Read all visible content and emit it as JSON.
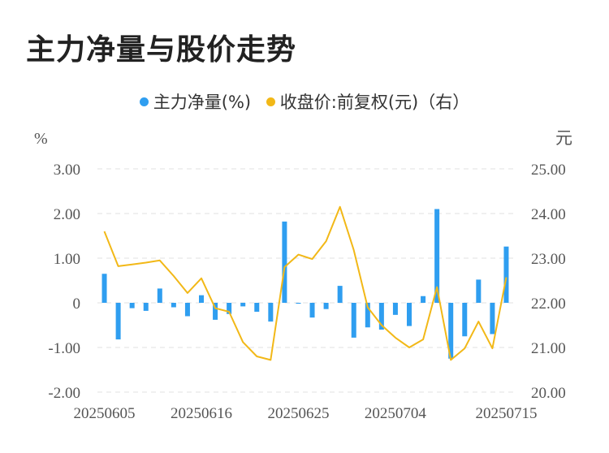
{
  "title": "主力净量与股价走势",
  "legend": {
    "bar_label": "主力净量(%)",
    "line_label": "收盘价:前复权(元)（右）"
  },
  "colors": {
    "bar": "#2f9ef0",
    "line": "#f2b817",
    "grid": "#e2e2e2",
    "axis_text": "#555555"
  },
  "chart_data": {
    "type": "bar",
    "left_unit": "%",
    "right_unit": "元",
    "left_ticks": [
      "3.00",
      "2.00",
      "1.00",
      "0",
      "-1.00",
      "-2.00"
    ],
    "right_ticks": [
      "25.00",
      "24.00",
      "23.00",
      "22.00",
      "21.00",
      "20.00"
    ],
    "left_range": [
      -2,
      3
    ],
    "right_range": [
      20,
      25
    ],
    "x_tick_labels": [
      "20250605",
      "20250616",
      "20250625",
      "20250704",
      "20250715"
    ],
    "x_tick_indices": [
      0,
      7,
      14,
      21,
      29
    ],
    "series": [
      {
        "name": "主力净量(%)",
        "type": "bar",
        "axis": "left",
        "values": [
          0.65,
          -0.82,
          -0.12,
          -0.18,
          0.32,
          -0.1,
          -0.3,
          0.17,
          -0.38,
          -0.25,
          -0.08,
          -0.2,
          -0.42,
          1.82,
          -0.02,
          -0.33,
          -0.14,
          0.38,
          -0.78,
          -0.55,
          -0.6,
          -0.27,
          -0.52,
          0.15,
          2.1,
          -1.25,
          -0.75,
          0.52,
          -0.7,
          1.26
        ]
      },
      {
        "name": "收盘价:前复权(元)（右）",
        "type": "line",
        "axis": "right",
        "values": [
          23.6,
          22.82,
          22.86,
          22.9,
          22.95,
          22.6,
          22.22,
          22.55,
          21.88,
          21.8,
          21.12,
          20.8,
          20.72,
          22.8,
          23.08,
          22.98,
          23.38,
          24.15,
          23.18,
          21.9,
          21.5,
          21.22,
          21.0,
          21.18,
          22.35,
          20.72,
          20.98,
          21.58,
          20.98,
          22.57
        ]
      }
    ]
  }
}
